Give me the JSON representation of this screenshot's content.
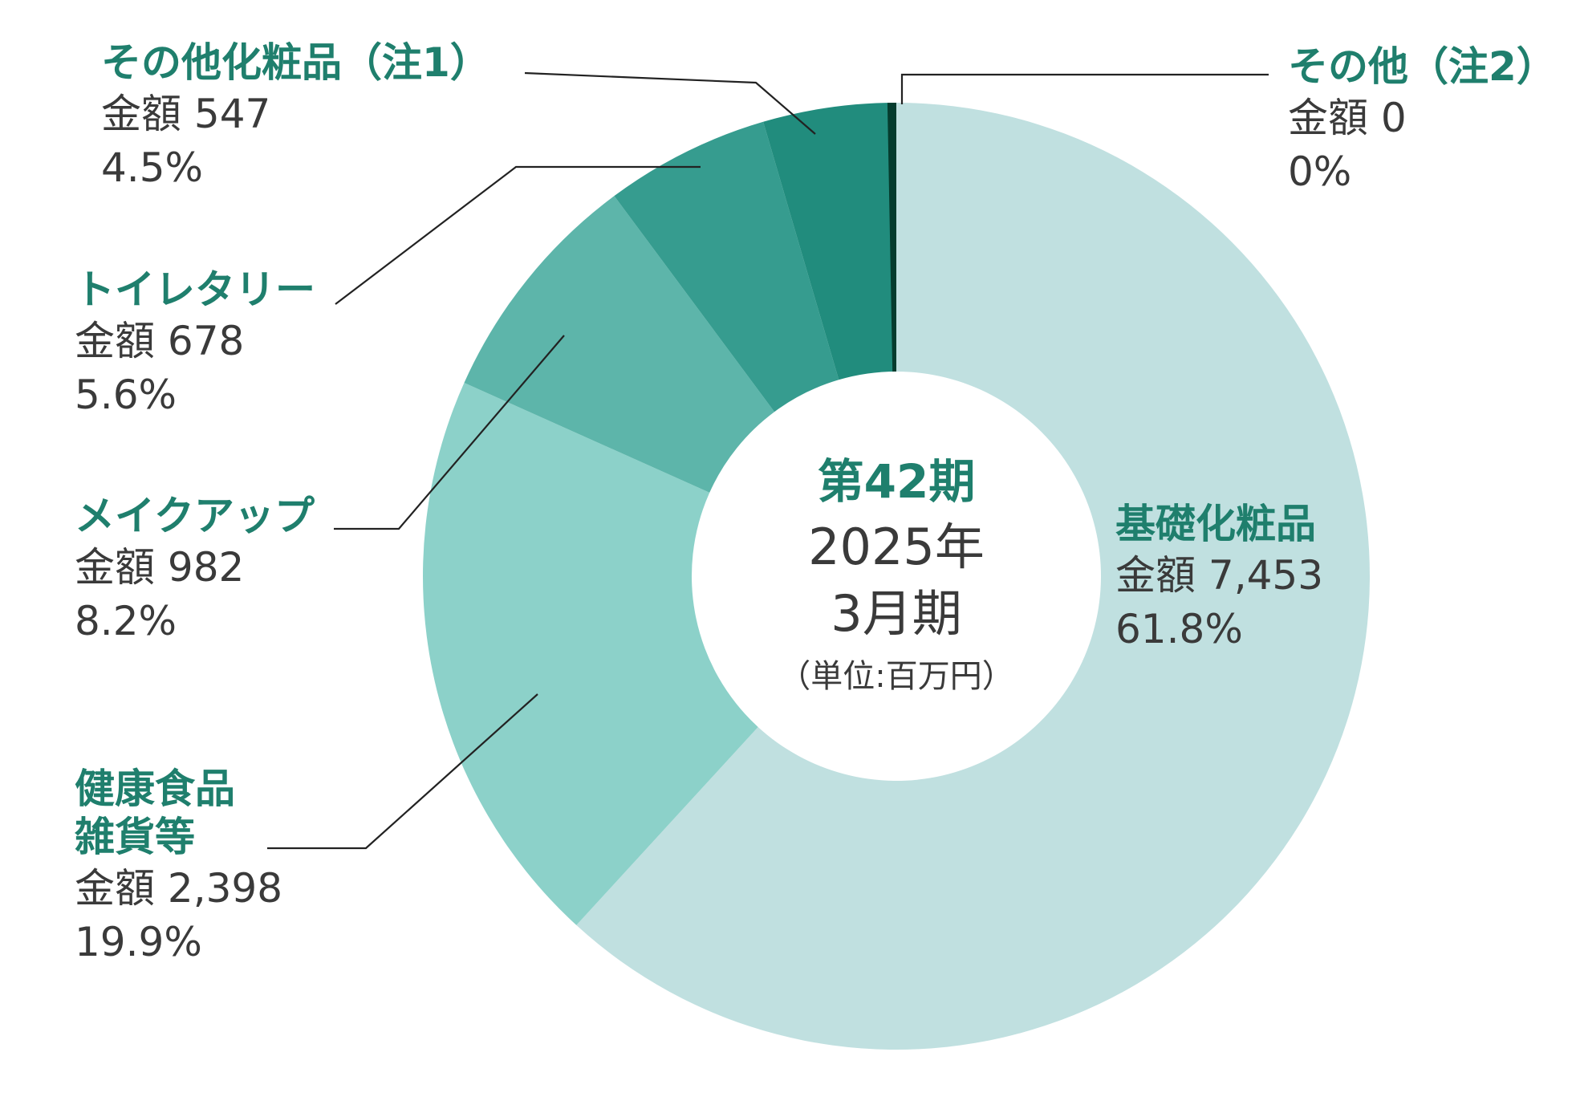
{
  "chart_data": {
    "type": "pie",
    "donut": true,
    "center": {
      "period": "第42期",
      "year": "2025年",
      "month": "3月期",
      "unit": "（単位:百万円）"
    },
    "amount_prefix": "金額",
    "slices": [
      {
        "key": "kiso",
        "label_lines": [
          "基礎化粧品"
        ],
        "amount": "7,453",
        "value": 7453,
        "percent": "61.8%",
        "color": "#c0e0e0"
      },
      {
        "key": "kenko",
        "label_lines": [
          "健康食品",
          "雑貨等"
        ],
        "amount": "2,398",
        "value": 2398,
        "percent": "19.9%",
        "color": "#8cd1c9"
      },
      {
        "key": "makeup",
        "label_lines": [
          "メイクアップ"
        ],
        "amount": "982",
        "value": 982,
        "percent": "8.2%",
        "color": "#5db5aa"
      },
      {
        "key": "toiletry",
        "label_lines": [
          "トイレタリー"
        ],
        "amount": "678",
        "value": 678,
        "percent": "5.6%",
        "color": "#369c8f"
      },
      {
        "key": "other-cosme",
        "label_lines": [
          "その他化粧品（注1）"
        ],
        "amount": "547",
        "value": 547,
        "percent": "4.5%",
        "color": "#218c7d"
      },
      {
        "key": "other",
        "label_lines": [
          "その他（注2）"
        ],
        "amount": "0",
        "value": 0,
        "percent": "0%",
        "color": "#053c2e"
      }
    ]
  }
}
